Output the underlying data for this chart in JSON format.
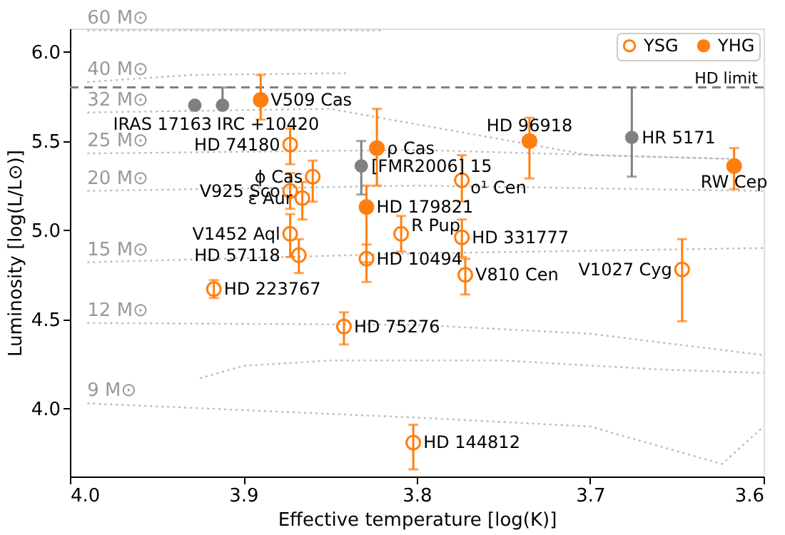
{
  "chart_data": {
    "type": "scatter",
    "xlabel": "Effective temperature [log(K)]",
    "ylabel": "Luminosity [log(L/L⊙)]",
    "xlim": [
      4.0,
      3.6
    ],
    "xticks": [
      {
        "value": 4.0,
        "label": "4.0"
      },
      3.9,
      3.8,
      3.7,
      3.6
    ],
    "ylim": [
      3.62,
      6.13
    ],
    "yticks": [
      {
        "value": 4.0,
        "label": "4.0"
      },
      4.5,
      {
        "value": 5.0,
        "label": "5.0"
      },
      5.5,
      {
        "value": 6.0,
        "label": "6.0"
      }
    ],
    "grid": false,
    "legend": "top right",
    "ref_lines": [
      {
        "axis": "y",
        "value": 5.8,
        "label": "HD limit",
        "color": "#808080",
        "line_style": "dashed"
      }
    ],
    "series": [
      {
        "name": "YSG",
        "type": "scatter",
        "marker": "circle",
        "color": "#ff7f0e",
        "x": [
          3.873,
          3.86,
          3.873,
          3.866,
          3.873,
          3.868,
          3.809,
          3.829,
          3.917,
          3.842,
          3.802,
          3.774,
          3.774,
          3.772,
          3.647
        ],
        "values": [
          5.48,
          5.3,
          5.22,
          5.18,
          4.98,
          4.86,
          4.98,
          4.84,
          4.67,
          4.46,
          3.81,
          5.28,
          4.96,
          4.75,
          4.78
        ],
        "errors": [
          [
            5.37,
            5.57
          ],
          [
            5.16,
            5.39
          ],
          [
            5.12,
            5.32
          ],
          [
            5.06,
            5.27
          ],
          [
            4.85,
            5.09
          ],
          [
            4.76,
            4.95
          ],
          [
            4.88,
            5.08
          ],
          [
            4.71,
            4.92
          ],
          [
            4.62,
            4.72
          ],
          [
            4.36,
            4.54
          ],
          [
            3.66,
            3.91
          ],
          [
            5.16,
            5.42
          ],
          [
            4.85,
            5.06
          ],
          [
            4.64,
            4.84
          ],
          [
            4.49,
            4.95
          ]
        ]
      },
      {
        "name": "YHG",
        "type": "scatter",
        "marker": "circle",
        "color": "#ff7f0e",
        "x": [
          3.89,
          3.823,
          3.829,
          3.735,
          3.617
        ],
        "values": [
          5.73,
          5.46,
          5.13,
          5.5,
          5.36
        ],
        "errors": [
          [
            5.62,
            5.87
          ],
          [
            5.25,
            5.68
          ],
          [
            4.82,
            5.25
          ],
          [
            5.29,
            5.63
          ],
          [
            5.23,
            5.46
          ]
        ]
      },
      {
        "type": "scatter",
        "marker": "circle",
        "color": "#808080",
        "x": [
          3.928,
          3.912,
          3.832,
          3.676
        ],
        "values": [
          5.7,
          5.7,
          5.36,
          5.52
        ],
        "errors": [
          null,
          [
            5.7,
            5.8
          ],
          [
            5.2,
            5.5
          ],
          [
            5.3,
            5.8
          ]
        ]
      },
      {
        "name": "60 M⊙",
        "type": "line",
        "line_style": "dotted",
        "color": "#bbbbbb",
        "x": [
          3.99,
          3.82
        ],
        "values": [
          6.12,
          6.12
        ]
      },
      {
        "name": "40 M⊙",
        "type": "line",
        "line_style": "dotted",
        "color": "#bbbbbb",
        "x": [
          3.99,
          3.93,
          3.84
        ],
        "values": [
          5.83,
          5.87,
          5.88
        ]
      },
      {
        "name": "32 M⊙",
        "type": "line",
        "line_style": "dotted",
        "color": "#bbbbbb",
        "x": [
          3.99,
          3.85,
          3.7,
          3.62
        ],
        "values": [
          5.66,
          5.68,
          5.42,
          5.4
        ]
      },
      {
        "name": "25 M⊙",
        "type": "line",
        "line_style": "dotted",
        "color": "#bbbbbb",
        "x": [
          3.99,
          3.8,
          3.62
        ],
        "values": [
          5.43,
          5.45,
          5.4
        ]
      },
      {
        "name": "20 M⊙",
        "type": "line",
        "line_style": "dotted",
        "color": "#bbbbbb",
        "x": [
          3.99,
          3.8,
          3.6
        ],
        "values": [
          5.22,
          5.25,
          5.22
        ]
      },
      {
        "name": "15 M⊙",
        "type": "line",
        "line_style": "dotted",
        "color": "#bbbbbb",
        "x": [
          3.99,
          3.8,
          3.6
        ],
        "values": [
          4.82,
          4.87,
          4.9
        ]
      },
      {
        "name": "12 M⊙",
        "type": "line",
        "line_style": "dotted",
        "color": "#bbbbbb",
        "x": [
          3.99,
          3.8,
          3.7,
          3.6
        ],
        "values": [
          4.48,
          4.47,
          4.42,
          4.3
        ]
      },
      {
        "type": "line",
        "line_style": "dotted",
        "color": "#bbbbbb",
        "x": [
          3.925,
          3.9,
          3.85,
          3.75,
          3.66,
          3.6
        ],
        "values": [
          4.17,
          4.24,
          4.27,
          4.27,
          4.22,
          4.2
        ]
      },
      {
        "name": "9 M⊙",
        "type": "line",
        "line_style": "dotted",
        "color": "#bbbbbb",
        "x": [
          3.99,
          3.8,
          3.7,
          3.624,
          3.6
        ],
        "values": [
          4.03,
          3.95,
          3.9,
          3.69,
          3.9
        ]
      }
    ],
    "annotations": [
      {
        "text": "IRAS 17163",
        "x": 3.928,
        "y": 5.7
      },
      {
        "text": "IRC +10420",
        "x": 3.912,
        "y": 5.7
      },
      {
        "text": "V509 Cas",
        "x": 3.89,
        "y": 5.73
      },
      {
        "text": "HD 74180",
        "x": 3.873,
        "y": 5.48
      },
      {
        "text": "ρ Cas",
        "x": 3.823,
        "y": 5.46
      },
      {
        "text": "ϕ Cas",
        "x": 3.86,
        "y": 5.3
      },
      {
        "text": "[FMR2006] 15",
        "x": 3.832,
        "y": 5.36
      },
      {
        "text": "V925 Sco",
        "x": 3.873,
        "y": 5.22
      },
      {
        "text": "ε Aur",
        "x": 3.866,
        "y": 5.18
      },
      {
        "text": "HD 179821",
        "x": 3.829,
        "y": 5.13
      },
      {
        "text": "V1452 Aql",
        "x": 3.873,
        "y": 4.98
      },
      {
        "text": "HD 57118",
        "x": 3.868,
        "y": 4.86
      },
      {
        "text": "R Pup",
        "x": 3.809,
        "y": 4.98
      },
      {
        "text": "HD 10494",
        "x": 3.829,
        "y": 4.84
      },
      {
        "text": "HD 223767",
        "x": 3.917,
        "y": 4.67
      },
      {
        "text": "HD 75276",
        "x": 3.842,
        "y": 4.46
      },
      {
        "text": "HD 144812",
        "x": 3.802,
        "y": 3.81
      },
      {
        "text": "o¹ Cen",
        "x": 3.774,
        "y": 5.28
      },
      {
        "text": "HD 331777",
        "x": 3.774,
        "y": 4.96
      },
      {
        "text": "V810 Cen",
        "x": 3.772,
        "y": 4.75
      },
      {
        "text": "V1027 Cyg",
        "x": 3.647,
        "y": 4.78
      },
      {
        "text": "HD 96918",
        "x": 3.735,
        "y": 5.5
      },
      {
        "text": "HR 5171",
        "x": 3.676,
        "y": 5.52
      },
      {
        "text": "RW Cep",
        "x": 3.617,
        "y": 5.36
      }
    ]
  }
}
